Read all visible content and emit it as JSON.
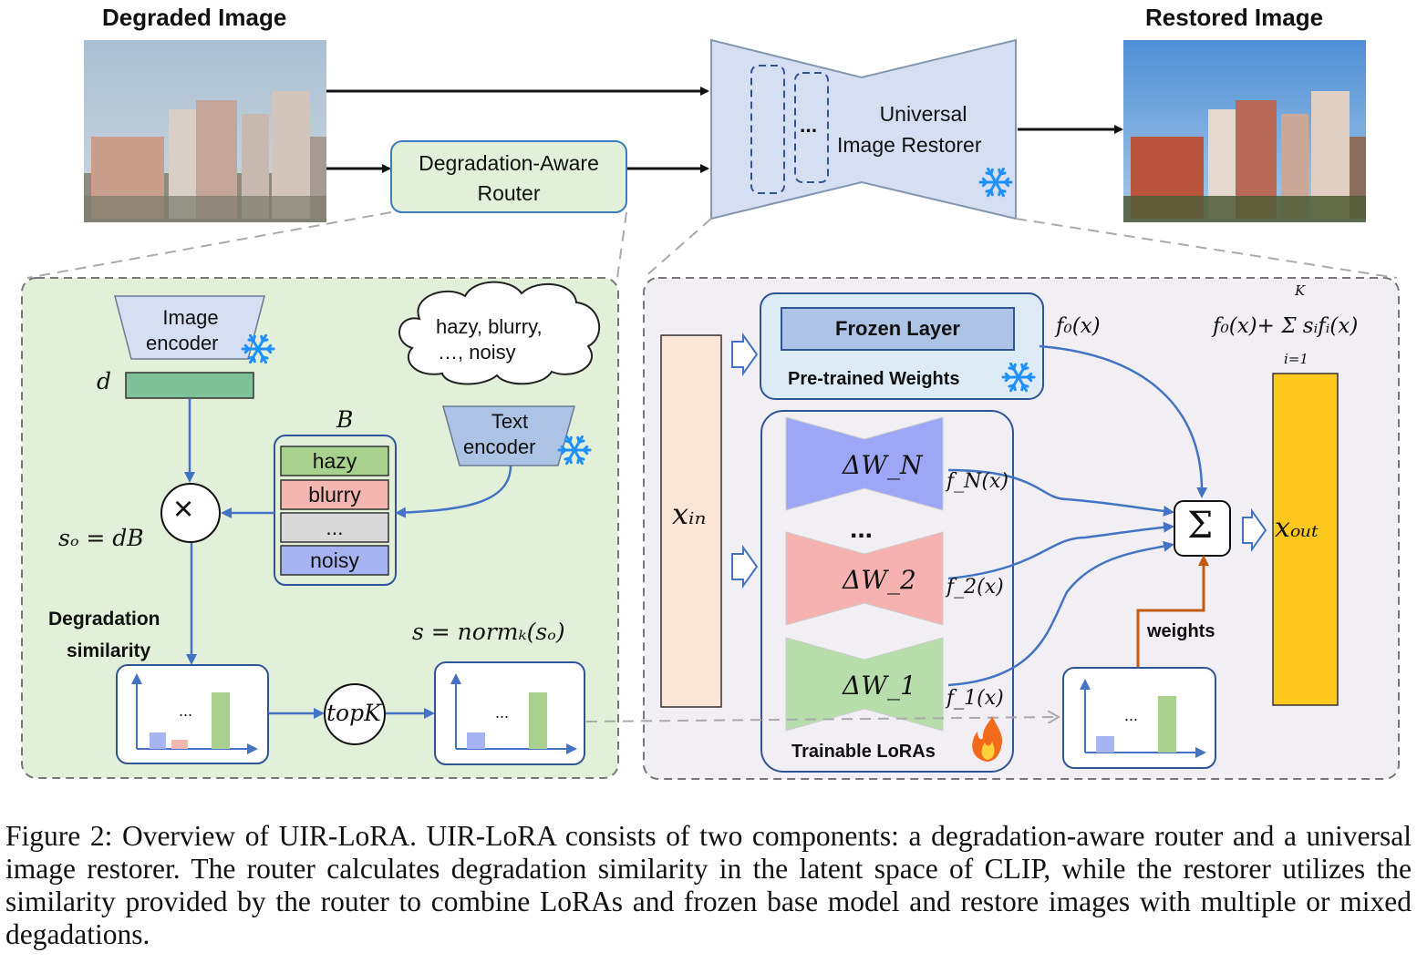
{
  "figure": {
    "degraded_title": "Degraded Image",
    "restored_title": "Restored Image",
    "router_label_line1": "Degradation-Aware",
    "router_label_line2": "Router",
    "restorer_label_line1": "Universal",
    "restorer_label_line2": "Image Restorer",
    "restorer_ellipsis": "...",
    "router_panel": {
      "image_encoder_line1": "Image",
      "image_encoder_line2": "encoder",
      "text_encoder_line1": "Text",
      "text_encoder_line2": "encoder",
      "cloud_line1": "hazy, blurry,",
      "cloud_line2": "…, noisy",
      "d_label": "d",
      "b_label": "B",
      "bank_items": [
        "hazy",
        "blurry",
        "...",
        "noisy"
      ],
      "bank_colors": [
        "#a9d18e",
        "#f4b6b0",
        "#d9d9d9",
        "#a6b4f2"
      ],
      "multiply_symbol": "×",
      "so_eq": "sₒ = dB",
      "degradation_similarity_line1": "Degradation",
      "degradation_similarity_line2": "similarity",
      "topk_label": "topK",
      "s_eq": "s = normₖ(sₒ)",
      "chart_ellipsis": "..."
    },
    "restorer_panel": {
      "x_in": "xᵢₙ",
      "x_out": "xₒᵤₜ",
      "frozen_layer": "Frozen Layer",
      "pretrained_weights": "Pre-trained Weights",
      "f0": "f₀(x)",
      "sum_formula": "f₀(x)+ Σ sᵢfᵢ(x)",
      "sum_upper": "K",
      "sum_lower": "i=1",
      "lora_labels": [
        "ΔW_N",
        "ΔW_2",
        "ΔW_1"
      ],
      "lora_colors": [
        "#9ea6f7",
        "#f6b2b1",
        "#b7deaa"
      ],
      "lora_outputs": [
        "f_N(x)",
        "f_2(x)",
        "f_1(x)"
      ],
      "lora_ellipsis": "...",
      "trainable_loras": "Trainable LoRAs",
      "sigma_symbol": "Σ",
      "weights_label": "weights"
    }
  },
  "caption": "Figure 2: Overview of UIR-LoRA. UIR-LoRA consists of two components: a degradation-aware router and a universal image restorer. The router calculates degradation similarity in the latent space of CLIP, while the restorer utilizes the similarity provided by the router to combine LoRAs and frozen base model and restore images with multiple or mixed degadations."
}
